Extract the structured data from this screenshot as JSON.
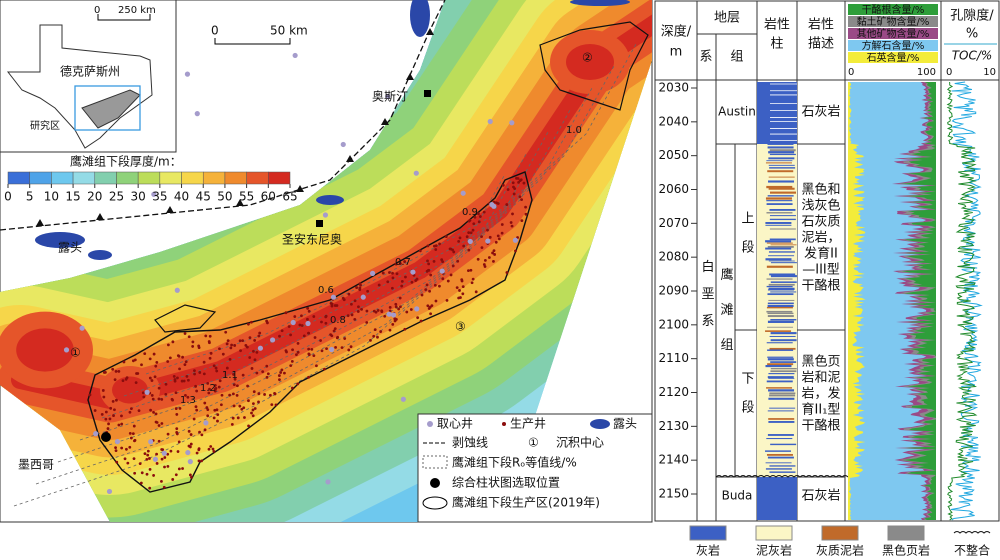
{
  "map": {
    "inset": {
      "scale_zero": "0",
      "scale_label": "250 km",
      "state": "德克萨斯州",
      "study_area": "研究区"
    },
    "scale_bar": {
      "zero": "0",
      "label": "50 km"
    },
    "thickness_legend": {
      "title": "鹰滩组下段厚度/m：",
      "ticks": [
        0,
        5,
        10,
        15,
        20,
        25,
        30,
        35,
        40,
        45,
        50,
        55,
        60,
        65
      ],
      "colors": [
        "#3a6fd8",
        "#4fa3e8",
        "#6ec8ee",
        "#94dbe6",
        "#82cfae",
        "#8fd27a",
        "#bcdd5a",
        "#e8e862",
        "#f6d64a",
        "#f5b23a",
        "#ef8a2d",
        "#e5552a",
        "#d42a20"
      ]
    },
    "places": {
      "austin": "奥斯汀",
      "san_antonio": "圣安东尼奥",
      "mexico": "墨西哥",
      "outcrop": "露头"
    },
    "depocenters": [
      "①",
      "②",
      "③"
    ],
    "ro_labels": [
      "0.6",
      "0.7",
      "0.8",
      "0.9",
      "1.0",
      "1.1",
      "1.2",
      "1.3"
    ],
    "legend": {
      "core_well": "取心井",
      "production_well": "生产井",
      "outcrop": "露头",
      "erosion_line": "剥蚀线",
      "depocenter_symbol": "①",
      "depocenter": "沉积中心",
      "ro_contour": "鹰滩组下段Rₒ等值线/%",
      "column_location": "综合柱状图选取位置",
      "production_area": "鹰滩组下段生产区(2019年)"
    }
  },
  "column": {
    "depth_header": [
      "深度/",
      "m"
    ],
    "strata": "地层",
    "system": "系",
    "formation": "组",
    "lithology_header": [
      "岩性",
      "柱"
    ],
    "description_header": [
      "岩性",
      "描述"
    ],
    "components": [
      {
        "name": "干酪根含量/%",
        "color": "#2e9e3a"
      },
      {
        "name": "黏土矿物含量/%",
        "color": "#8a8a8a"
      },
      {
        "name": "其他矿物含量/%",
        "color": "#9a4a86"
      },
      {
        "name": "方解石含量/%",
        "color": "#7ec8f0"
      },
      {
        "name": "石英含量/%",
        "color": "#f3ec3a"
      }
    ],
    "component_ticks": [
      0,
      100
    ],
    "porosity_header": [
      "孔隙度/",
      "%"
    ],
    "toc_header": "TOC/%",
    "log_ticks": [
      0,
      10
    ],
    "depth_ticks": [
      2030,
      2040,
      2050,
      2060,
      2070,
      2080,
      2090,
      2100,
      2110,
      2120,
      2130,
      2140,
      2150
    ],
    "system_name": "白垩系",
    "formation_name": "鹰滩组",
    "upper": "上段",
    "lower": "下段",
    "austin": "Austin",
    "buda": "Buda",
    "desc_austin": "石灰岩",
    "desc_upper": [
      "黑色和",
      "浅灰色",
      "石灰质",
      "泥岩，",
      "发育II",
      "—III型",
      "干酪根"
    ],
    "desc_lower": [
      "黑色页",
      "岩和泥",
      "岩，发",
      "育II₁型",
      "干酪根"
    ],
    "desc_buda": "石灰岩",
    "legend": [
      "灰岩",
      "泥灰岩",
      "灰质泥岩",
      "黑色页岩",
      "不整合"
    ]
  }
}
